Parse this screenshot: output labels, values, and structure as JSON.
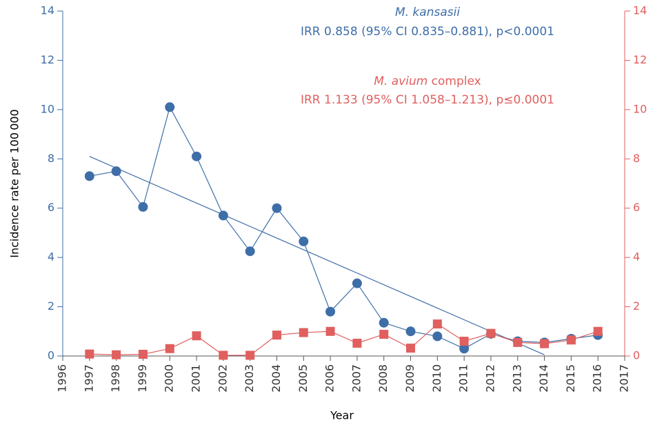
{
  "chart_data": {
    "type": "line",
    "x_label": "Year",
    "y_label": "Incidence rate per 100 000",
    "annotations": [
      [
        "M. kansasii"
      ],
      [
        "IRR 0.858 (95% CI 0.835–0.881), p<0.0001"
      ],
      [
        "M. avium",
        " complex"
      ],
      [
        "IRR 1.133 (95% CI 1.058–1.213), p≤0.0001"
      ]
    ],
    "x": [
      1997,
      1998,
      1999,
      2000,
      2001,
      2002,
      2003,
      2004,
      2005,
      2006,
      2007,
      2008,
      2009,
      2010,
      2011,
      2012,
      2013,
      2014,
      2015,
      2016
    ],
    "series": [
      {
        "color": "#3e6ea8",
        "marker": "circle",
        "values": [
          7.3,
          7.5,
          6.05,
          10.1,
          8.1,
          5.7,
          4.25,
          6.0,
          4.65,
          1.8,
          2.95,
          1.35,
          1.0,
          0.8,
          0.3,
          0.9,
          0.6,
          0.55,
          0.7,
          0.85
        ]
      },
      {
        "color": "#e05f5f",
        "marker": "square",
        "axis": "y2",
        "values": [
          0.08,
          0.05,
          0.07,
          0.3,
          0.82,
          0.03,
          0.03,
          0.85,
          0.95,
          1.0,
          0.52,
          0.88,
          0.32,
          1.3,
          0.6,
          0.92,
          0.55,
          0.5,
          0.65,
          1.0
        ]
      }
    ],
    "trend": {
      "color": "#3e6ea8",
      "x": [
        1997,
        2014
      ],
      "values": [
        8.1,
        0.05
      ]
    },
    "xlim": [
      1996,
      2017
    ],
    "xticks": [
      1996,
      1997,
      1998,
      1999,
      2000,
      2001,
      2002,
      2003,
      2004,
      2005,
      2006,
      2007,
      2008,
      2009,
      2010,
      2011,
      2012,
      2013,
      2014,
      2015,
      2016,
      2017
    ],
    "ylim": [
      0,
      14
    ],
    "yticks": [
      0,
      2,
      4,
      6,
      8,
      10,
      12,
      14
    ],
    "y2lim": [
      0,
      14
    ],
    "y2ticks": [
      0,
      2,
      4,
      6,
      8,
      10,
      12,
      14
    ],
    "y_color": "#3e6ea8",
    "y2_color": "#e05f5f"
  }
}
